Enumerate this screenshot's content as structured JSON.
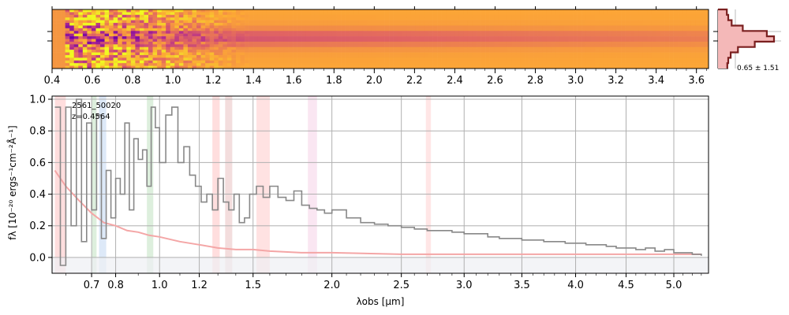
{
  "chart_data": [
    {
      "type": "heatmap",
      "panel": "2d-spectrum",
      "colormap": "plasma",
      "xlim": [
        0.4,
        3.66
      ],
      "top_ticks": [
        "0.4",
        "0.6",
        "0.8",
        "1.0",
        "1.2",
        "1.4",
        "1.6",
        "1.8",
        "2.0",
        "2.2",
        "2.4",
        "2.6",
        "2.8",
        "3.0",
        "3.2",
        "3.4",
        "3.6"
      ],
      "top_tick_values": [
        0.4,
        0.6,
        0.8,
        1.0,
        1.2,
        1.4,
        1.6,
        1.8,
        2.0,
        2.2,
        2.4,
        2.6,
        2.8,
        3.0,
        3.2,
        3.4,
        3.6
      ]
    },
    {
      "type": "line",
      "panel": "profile-inset",
      "annotation": "0.65 ± 1.51",
      "profile": [
        0.02,
        0.05,
        0.12,
        0.35,
        0.85,
        1.0,
        0.6,
        0.25,
        0.1,
        0.05,
        0.03
      ],
      "fill_color": "#f4b8b8",
      "line_color": "#7a1f1f"
    },
    {
      "type": "line",
      "panel": "1d-spectrum",
      "id_label": "2561_50020",
      "z_label": "z=0.4564",
      "xlabel": "λobs [μm]",
      "ylabel": "fλ [10⁻²⁰ ergs⁻¹cm⁻²Å⁻¹]",
      "xlim": [
        0.55,
        5.38
      ],
      "ylim": [
        -0.1,
        1.02
      ],
      "grid": true,
      "x_ticks": [
        "0.7",
        "0.8",
        "1.0",
        "1.2",
        "1.5",
        "2.0",
        "2.5",
        "3.0",
        "3.5",
        "4.0",
        "4.5",
        "5.0"
      ],
      "x_tick_values": [
        0.7,
        0.8,
        1.0,
        1.2,
        1.5,
        2.0,
        2.5,
        3.0,
        3.5,
        4.0,
        4.5,
        5.0
      ],
      "y_ticks": [
        "0.0",
        "0.2",
        "0.4",
        "0.6",
        "0.8",
        "1.0"
      ],
      "y_tick_values": [
        0.0,
        0.2,
        0.4,
        0.6,
        0.8,
        1.0
      ],
      "emission_bands": [
        {
          "x0": 0.56,
          "x1": 0.6,
          "color": "#ffd0d0"
        },
        {
          "x0": 0.7,
          "x1": 0.72,
          "color": "#cfe8cf"
        },
        {
          "x0": 0.73,
          "x1": 0.76,
          "color": "#cfe0f5"
        },
        {
          "x0": 0.94,
          "x1": 0.97,
          "color": "#cfe8cf"
        },
        {
          "x0": 1.27,
          "x1": 1.31,
          "color": "#ffd0d0"
        },
        {
          "x0": 1.34,
          "x1": 1.38,
          "color": "#eecfcf"
        },
        {
          "x0": 1.52,
          "x1": 1.6,
          "color": "#ffd6d6"
        },
        {
          "x0": 1.84,
          "x1": 1.9,
          "color": "#f8dcec"
        },
        {
          "x0": 2.69,
          "x1": 2.73,
          "color": "#ffdcdc"
        }
      ],
      "series": [
        {
          "role": "flux",
          "color": "#888888",
          "x": [
            0.56,
            0.58,
            0.6,
            0.62,
            0.64,
            0.66,
            0.68,
            0.7,
            0.72,
            0.74,
            0.76,
            0.78,
            0.8,
            0.82,
            0.84,
            0.86,
            0.88,
            0.9,
            0.92,
            0.94,
            0.96,
            0.98,
            1.0,
            1.03,
            1.06,
            1.09,
            1.12,
            1.15,
            1.18,
            1.21,
            1.24,
            1.27,
            1.3,
            1.33,
            1.36,
            1.39,
            1.42,
            1.45,
            1.48,
            1.52,
            1.56,
            1.6,
            1.65,
            1.7,
            1.75,
            1.8,
            1.85,
            1.9,
            1.95,
            2.0,
            2.1,
            2.2,
            2.3,
            2.4,
            2.5,
            2.6,
            2.7,
            2.8,
            2.9,
            3.0,
            3.1,
            3.2,
            3.3,
            3.4,
            3.5,
            3.6,
            3.7,
            3.8,
            3.9,
            4.0,
            4.1,
            4.2,
            4.3,
            4.4,
            4.5,
            4.6,
            4.7,
            4.8,
            4.9,
            5.0,
            5.1,
            5.2,
            5.3
          ],
          "y": [
            0.95,
            -0.05,
            0.95,
            0.2,
            1.0,
            0.1,
            0.85,
            0.3,
            0.9,
            0.12,
            0.55,
            0.25,
            0.5,
            0.4,
            0.85,
            0.3,
            0.75,
            0.62,
            0.68,
            0.45,
            0.95,
            0.82,
            0.6,
            0.9,
            0.95,
            0.6,
            0.7,
            0.52,
            0.45,
            0.35,
            0.4,
            0.3,
            0.5,
            0.35,
            0.3,
            0.4,
            0.22,
            0.25,
            0.4,
            0.45,
            0.38,
            0.45,
            0.38,
            0.36,
            0.42,
            0.33,
            0.31,
            0.3,
            0.28,
            0.3,
            0.25,
            0.22,
            0.21,
            0.2,
            0.19,
            0.18,
            0.17,
            0.17,
            0.16,
            0.15,
            0.15,
            0.13,
            0.12,
            0.12,
            0.11,
            0.11,
            0.1,
            0.1,
            0.09,
            0.09,
            0.08,
            0.08,
            0.07,
            0.06,
            0.06,
            0.05,
            0.06,
            0.04,
            0.05,
            0.03,
            0.03,
            0.02,
            0.01
          ]
        },
        {
          "role": "model",
          "color": "#f4a6a6",
          "x": [
            0.56,
            0.6,
            0.65,
            0.7,
            0.75,
            0.8,
            0.85,
            0.9,
            0.95,
            1.0,
            1.1,
            1.2,
            1.3,
            1.4,
            1.5,
            1.6,
            1.8,
            2.0,
            2.5,
            3.0,
            3.5,
            4.0,
            4.5,
            5.0,
            5.3
          ],
          "y": [
            0.55,
            0.45,
            0.36,
            0.28,
            0.22,
            0.2,
            0.17,
            0.16,
            0.14,
            0.13,
            0.1,
            0.08,
            0.06,
            0.05,
            0.05,
            0.04,
            0.03,
            0.03,
            0.02,
            0.02,
            0.02,
            0.02,
            0.02,
            0.02,
            0.02
          ]
        }
      ]
    }
  ]
}
